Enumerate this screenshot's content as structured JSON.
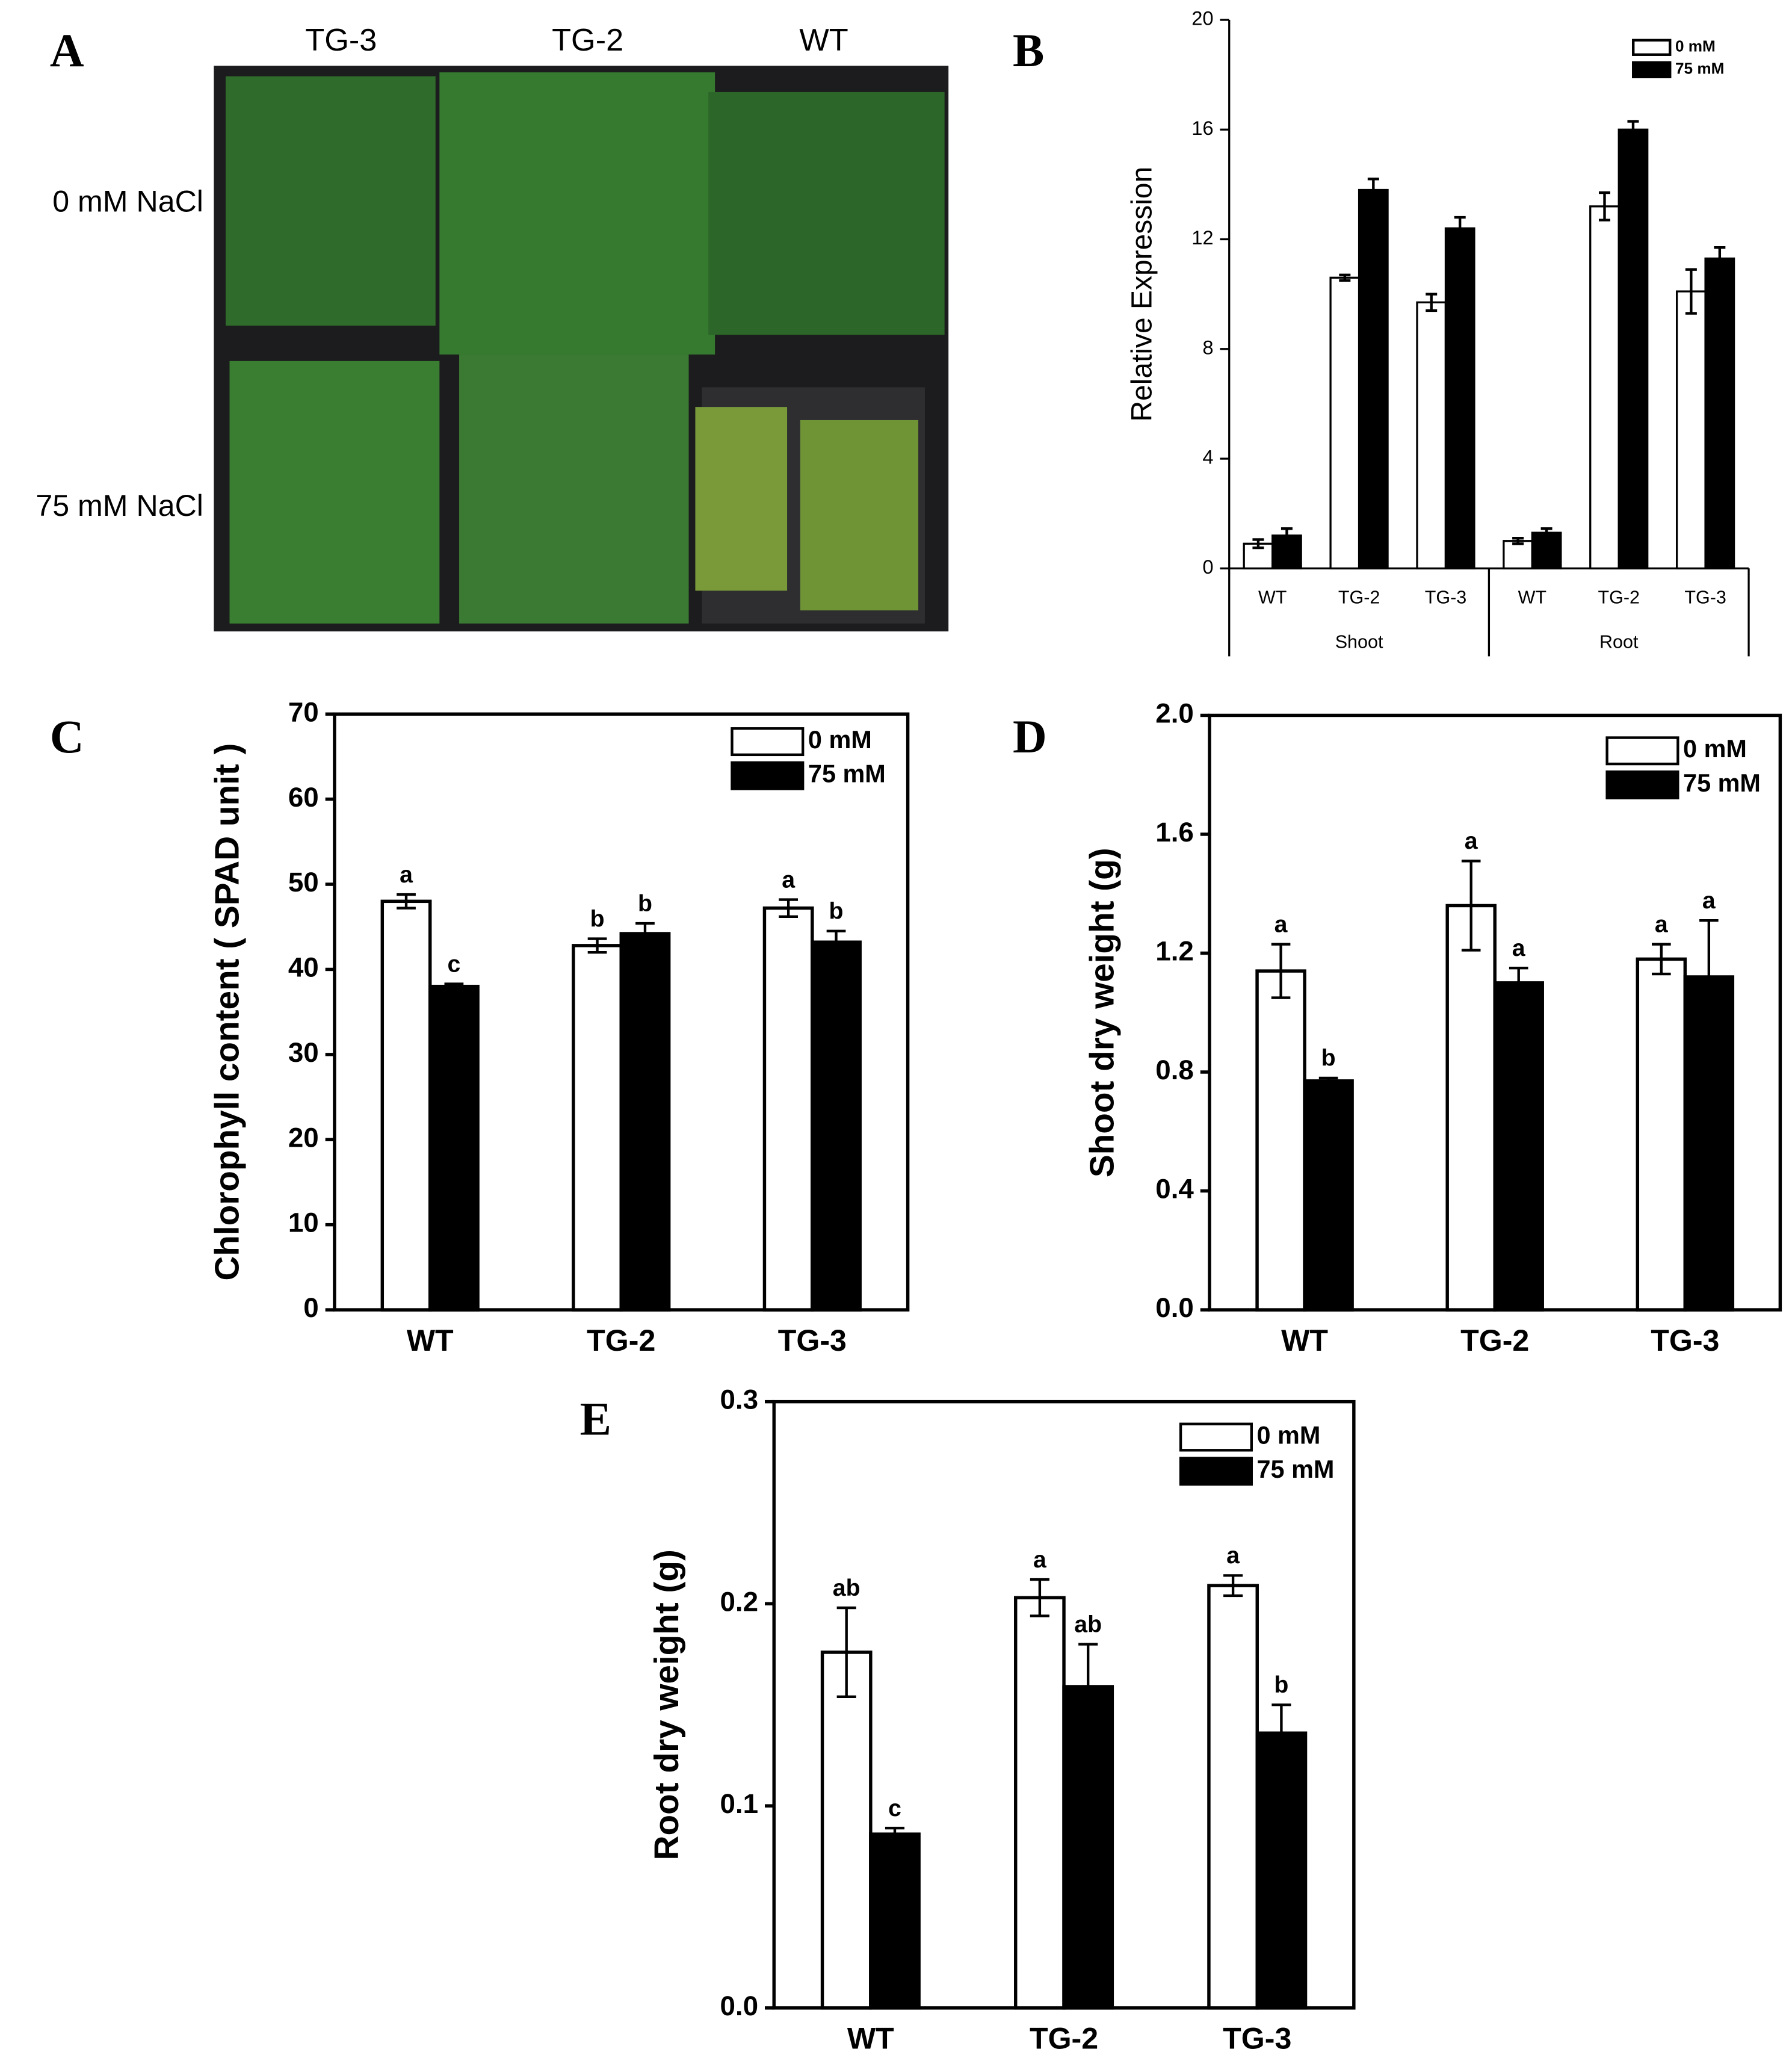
{
  "photo_panel": {
    "panel": "A",
    "columns": [
      "TG-3",
      "TG-2",
      "WT"
    ],
    "rows": [
      "0 mM NaCl",
      "75 mM NaCl"
    ]
  },
  "chart_data": [
    {
      "type": "bar",
      "panel": "B",
      "y_label": "Relative Expression",
      "groups": [
        {
          "label": "Shoot",
          "categories": [
            "WT",
            "TG-2",
            "TG-3"
          ]
        },
        {
          "label": "Root",
          "categories": [
            "WT",
            "TG-2",
            "TG-3"
          ]
        }
      ],
      "series": [
        {
          "name": "0 mM",
          "color": "#ffffff",
          "values": [
            0.9,
            10.6,
            9.7,
            1.0,
            13.2,
            10.1
          ],
          "errors": [
            0.15,
            0.1,
            0.3,
            0.1,
            0.5,
            0.8
          ]
        },
        {
          "name": "75 mM",
          "color": "#000000",
          "values": [
            1.2,
            13.8,
            12.4,
            1.3,
            16.0,
            11.3
          ],
          "errors": [
            0.25,
            0.4,
            0.4,
            0.15,
            0.3,
            0.4
          ]
        }
      ],
      "ylim": [
        0,
        20
      ],
      "yticks": [
        0,
        4,
        8,
        12,
        16,
        20
      ]
    },
    {
      "type": "bar",
      "panel": "C",
      "y_label": "Chlorophyll content ( SPAD unit )",
      "categories": [
        "WT",
        "TG-2",
        "TG-3"
      ],
      "series": [
        {
          "name": "0 mM",
          "color": "#ffffff",
          "values": [
            48,
            42.8,
            47.2
          ],
          "errors": [
            0.8,
            0.8,
            1.0
          ],
          "letters": [
            "a",
            "b",
            "a"
          ]
        },
        {
          "name": "75 mM",
          "color": "#000000",
          "values": [
            38,
            44.2,
            43.2
          ],
          "errors": [
            0.3,
            1.2,
            1.3
          ],
          "letters": [
            "c",
            "b",
            "b"
          ]
        }
      ],
      "ylim": [
        0,
        70
      ],
      "yticks": [
        0,
        10,
        20,
        30,
        40,
        50,
        60,
        70
      ]
    },
    {
      "type": "bar",
      "panel": "D",
      "y_label": "Shoot dry weight (g)",
      "categories": [
        "WT",
        "TG-2",
        "TG-3"
      ],
      "series": [
        {
          "name": "0 mM",
          "color": "#ffffff",
          "values": [
            1.14,
            1.36,
            1.18
          ],
          "errors": [
            0.09,
            0.15,
            0.05
          ],
          "letters": [
            "a",
            "a",
            "a"
          ]
        },
        {
          "name": "75 mM",
          "color": "#000000",
          "values": [
            0.77,
            1.1,
            1.12
          ],
          "errors": [
            0.01,
            0.05,
            0.19
          ],
          "letters": [
            "b",
            "a",
            "a"
          ]
        }
      ],
      "ylim": [
        0,
        2
      ],
      "yticks": [
        {
          "value": 0,
          "label": "0.0"
        },
        0.4,
        0.8,
        1.2,
        1.6,
        {
          "value": 2,
          "label": "2.0"
        }
      ]
    },
    {
      "type": "bar",
      "panel": "E",
      "y_label": "Root dry weight (g)",
      "categories": [
        "WT",
        "TG-2",
        "TG-3"
      ],
      "series": [
        {
          "name": "0 mM",
          "color": "#ffffff",
          "values": [
            0.176,
            0.203,
            0.209
          ],
          "errors": [
            0.022,
            0.009,
            0.005
          ],
          "letters": [
            "ab",
            "a",
            "a"
          ]
        },
        {
          "name": "75 mM",
          "color": "#000000",
          "values": [
            0.086,
            0.159,
            0.136
          ],
          "errors": [
            0.003,
            0.021,
            0.014
          ],
          "letters": [
            "c",
            "ab",
            "b"
          ]
        }
      ],
      "ylim": [
        0,
        0.3
      ],
      "yticks": [
        {
          "value": 0,
          "label": "0.0"
        },
        0.1,
        0.2,
        0.3
      ]
    }
  ]
}
